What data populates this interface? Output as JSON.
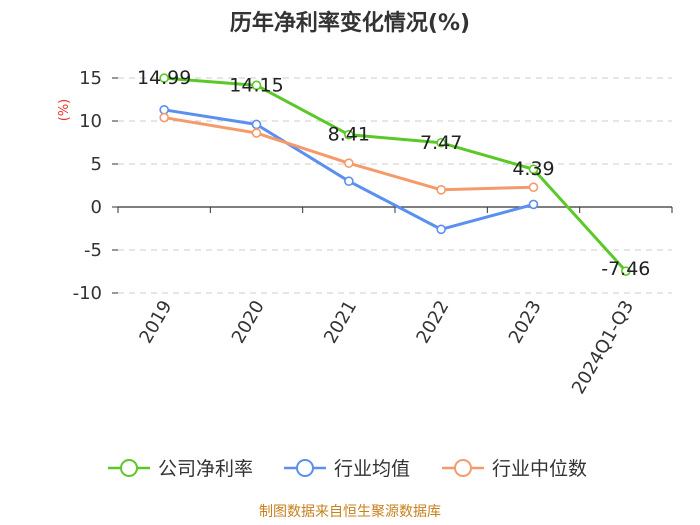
{
  "chart_data": {
    "type": "line",
    "title": "历年净利率变化情况(%)",
    "ylabel": "(%)",
    "xlabel": "",
    "categories": [
      "2019",
      "2020",
      "2021",
      "2022",
      "2023",
      "2024Q1-Q3"
    ],
    "ylim": [
      -10,
      15
    ],
    "yticks": [
      15,
      10,
      5,
      0,
      -5,
      -10
    ],
    "grid": true,
    "legend_position": "bottom",
    "series": [
      {
        "name": "公司净利率",
        "color": "#5ac828",
        "values": [
          14.99,
          14.15,
          8.41,
          7.47,
          4.39,
          -7.46
        ],
        "labels": [
          "14.99",
          "14.15",
          "8.41",
          "7.47",
          "4.39",
          "-7.46"
        ]
      },
      {
        "name": "行业均值",
        "color": "#5b8ff0",
        "values": [
          11.3,
          9.6,
          3.0,
          -2.6,
          0.3,
          null
        ]
      },
      {
        "name": "行业中位数",
        "color": "#f59a6a",
        "values": [
          10.4,
          8.6,
          5.1,
          2.0,
          2.3,
          null
        ]
      }
    ]
  },
  "footer": {
    "source": "制图数据来自恒生聚源数据库"
  }
}
